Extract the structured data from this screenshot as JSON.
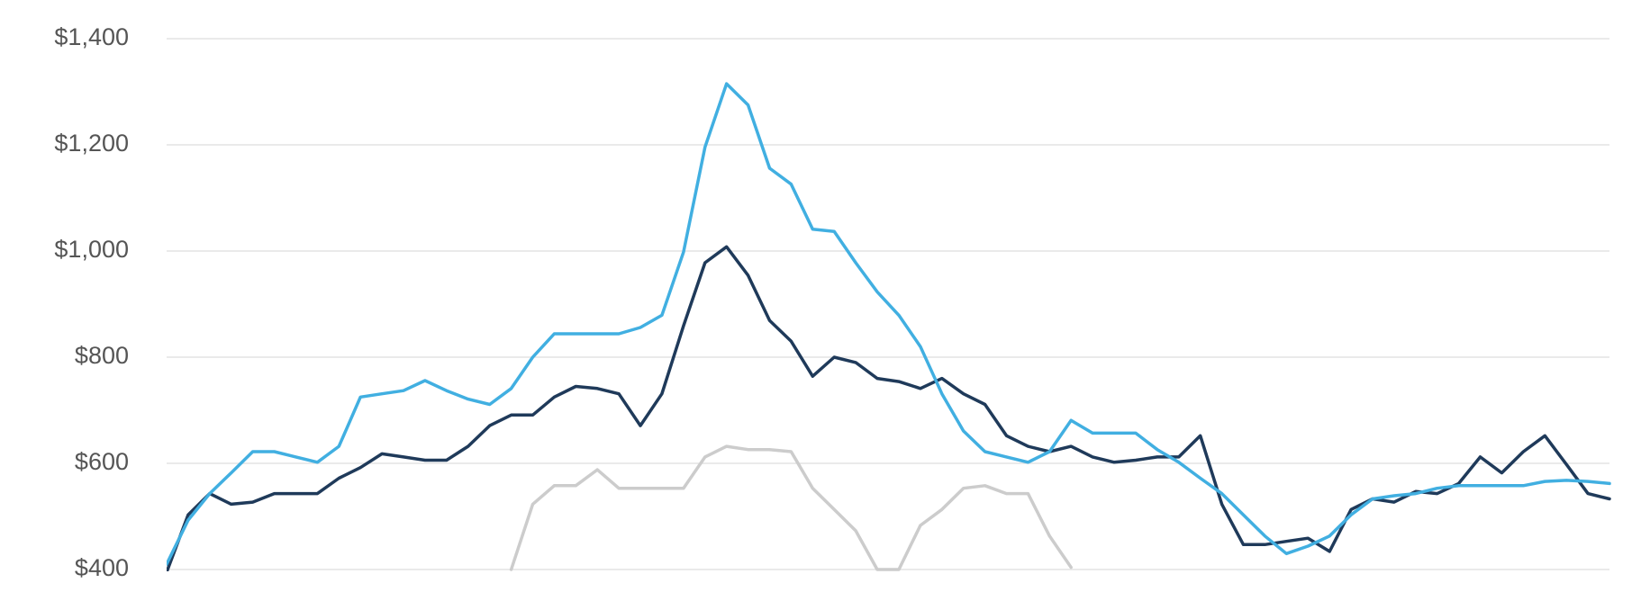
{
  "chart_data": {
    "type": "line",
    "categories": [
      null,
      null,
      null,
      null,
      null,
      null,
      null,
      null,
      null,
      null,
      null,
      null,
      null,
      null,
      null,
      null,
      null,
      null,
      null,
      null,
      null,
      null,
      null,
      null,
      null,
      null,
      null,
      null,
      null,
      null,
      null,
      null,
      null,
      null,
      null,
      null,
      null,
      null,
      null,
      null,
      null,
      null,
      null,
      null,
      null,
      null,
      null,
      null,
      null,
      null,
      null,
      null,
      null,
      null,
      null,
      null,
      null,
      null,
      null,
      null,
      null,
      null,
      null,
      null,
      null,
      null,
      null,
      null
    ],
    "series": [
      {
        "color": "#cccccc",
        "values": [
          null,
          null,
          null,
          null,
          null,
          null,
          null,
          null,
          null,
          null,
          null,
          null,
          null,
          null,
          null,
          null,
          400,
          523,
          558,
          558,
          588,
          553,
          553,
          553,
          553,
          612,
          632,
          626,
          626,
          622,
          553,
          513,
          473,
          400,
          400,
          483,
          513,
          553,
          558,
          543,
          543,
          463,
          404,
          null,
          null,
          null,
          null,
          null,
          null,
          null,
          null,
          null,
          null,
          null,
          null,
          null,
          null,
          null,
          null,
          null,
          null,
          null,
          null,
          null,
          null,
          null,
          null,
          null
        ]
      },
      {
        "color": "#1f3a5a",
        "values": [
          395,
          503,
          543,
          523,
          527,
          543,
          543,
          543,
          572,
          592,
          618,
          612,
          606,
          606,
          632,
          671,
          691,
          691,
          725,
          745,
          741,
          731,
          671,
          731,
          859,
          978,
          1008,
          954,
          869,
          830,
          764,
          800,
          790,
          760,
          754,
          741,
          760,
          731,
          711,
          652,
          632,
          622,
          632,
          612,
          602,
          606,
          612,
          612,
          652,
          523,
          447,
          447,
          453,
          459,
          434,
          513,
          533,
          527,
          547,
          543,
          562,
          612,
          582,
          622,
          652,
          598,
          543,
          533
        ]
      },
      {
        "color": "#41afe1",
        "values": [
          410,
          493,
          543,
          582,
          622,
          622,
          612,
          602,
          632,
          725,
          731,
          737,
          756,
          737,
          721,
          711,
          741,
          800,
          844,
          844,
          844,
          844,
          856,
          879,
          998,
          1196,
          1315,
          1275,
          1156,
          1126,
          1041,
          1037,
          978,
          923,
          879,
          820,
          731,
          661,
          622,
          612,
          602,
          622,
          681,
          657,
          657,
          657,
          626,
          602,
          572,
          543,
          503,
          463,
          430,
          444,
          463,
          503,
          533,
          539,
          543,
          553,
          558,
          558,
          558,
          558,
          566,
          568,
          566,
          562
        ]
      }
    ],
    "ylim": [
      400,
      1400
    ],
    "yticks": [
      {
        "value": 400,
        "label": "$400"
      },
      {
        "value": 600,
        "label": "$600"
      },
      {
        "value": 800,
        "label": "$800"
      },
      {
        "value": 1000,
        "label": "$1,000"
      },
      {
        "value": 1200,
        "label": "$1,200"
      },
      {
        "value": 1400,
        "label": "$1,400"
      }
    ],
    "grid": true
  }
}
